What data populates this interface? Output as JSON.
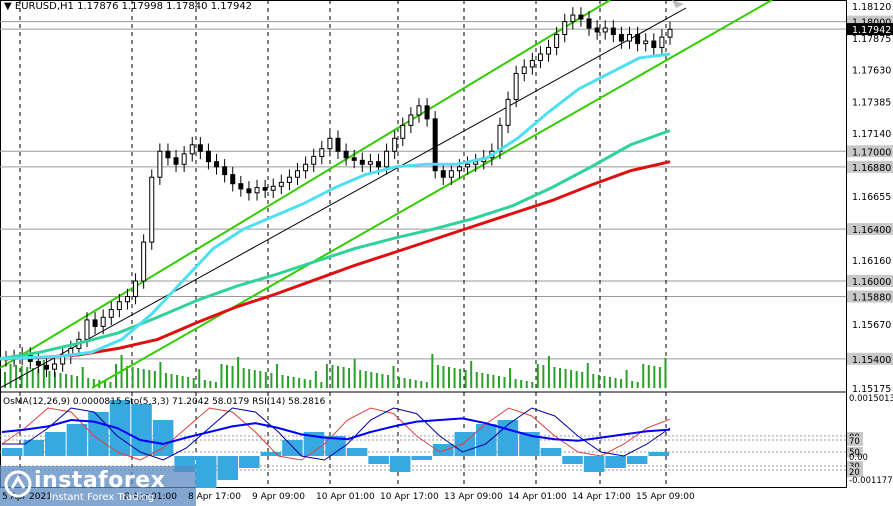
{
  "header": {
    "symbol": "EURUSD,H1",
    "ohlc": "1.17876 1.17998 1.17840 1.17942"
  },
  "price_labels": [
    {
      "text": "1.18120",
      "boxed": false
    },
    {
      "text": "1.18000",
      "boxed": true,
      "bg": "#c8c8c8",
      "color": "#000"
    },
    {
      "text": "1.17942",
      "boxed": true,
      "bg": "#000000",
      "color": "#fff"
    },
    {
      "text": "1.17875",
      "boxed": false
    },
    {
      "text": "1.17630",
      "boxed": false
    },
    {
      "text": "1.17385",
      "boxed": false
    },
    {
      "text": "1.17140",
      "boxed": false
    },
    {
      "text": "1.17000",
      "boxed": true,
      "bg": "#c8c8c8",
      "color": "#000"
    },
    {
      "text": "1.16880",
      "boxed": true,
      "bg": "#c8c8c8",
      "color": "#000"
    },
    {
      "text": "1.16655",
      "boxed": false
    },
    {
      "text": "1.16400",
      "boxed": true,
      "bg": "#c8c8c8",
      "color": "#000"
    },
    {
      "text": "1.16160",
      "boxed": false
    },
    {
      "text": "1.16000",
      "boxed": true,
      "bg": "#c8c8c8",
      "color": "#000"
    },
    {
      "text": "1.15880",
      "boxed": true,
      "bg": "#c8c8c8",
      "color": "#000"
    },
    {
      "text": "1.15670",
      "boxed": false
    },
    {
      "text": "1.15400",
      "boxed": true,
      "bg": "#c8c8c8",
      "color": "#000"
    },
    {
      "text": "1.15175",
      "boxed": false
    }
  ],
  "osc_header": {
    "osma": "OsMA(12,26,9) 0.0000815",
    "stoch": "Sto(5,3,3) 71.2042 58.0179",
    "rsi": "RSI(14) 58.2816"
  },
  "osc_labels": [
    {
      "text": "0.0015013",
      "boxed": false
    },
    {
      "text": "80",
      "boxed": true
    },
    {
      "text": "70",
      "boxed": true
    },
    {
      "text": "50",
      "boxed": true
    },
    {
      "text": "0.00",
      "boxed": false
    },
    {
      "text": "30",
      "boxed": true
    },
    {
      "text": "20",
      "boxed": true
    },
    {
      "text": "-0.0011779",
      "boxed": false
    }
  ],
  "time_labels": [
    "5 Apr 2021",
    "8 Apr 01:00",
    "8 Apr 17:00",
    "9 Apr 09:00",
    "10 Apr 01:00",
    "10 Apr 17:00",
    "13 Apr 09:00",
    "14 Apr 01:00",
    "14 Apr 17:00",
    "15 Apr 09:00"
  ],
  "logo": {
    "title": "instaforex",
    "subtitle": "Instant Forex Trading"
  },
  "colors": {
    "candle": "#000000",
    "ma_fast": "#4ee0f0",
    "ma_mid": "#2ed39a",
    "ma_slow": "#e01010",
    "channel": "#33cc00",
    "volume": "#2aa02a",
    "osma": "#37a8e0",
    "stoch_main": "#0000a0",
    "stoch_signal": "#e04040",
    "rsi": "#0000ff"
  },
  "chart_data": {
    "type": "line",
    "title": "EURUSD,H1",
    "ylim": [
      1.15175,
      1.1812
    ],
    "candles_close": [
      1.154,
      1.1541,
      1.1543,
      1.1538,
      1.1535,
      1.1532,
      1.1536,
      1.1542,
      1.1548,
      1.1555,
      1.157,
      1.1565,
      1.1572,
      1.1578,
      1.1584,
      1.1588,
      1.16,
      1.163,
      1.168,
      1.17,
      1.1695,
      1.169,
      1.1698,
      1.1705,
      1.17,
      1.1692,
      1.1688,
      1.1682,
      1.1675,
      1.1671,
      1.1668,
      1.1672,
      1.167,
      1.1673,
      1.1676,
      1.168,
      1.1685,
      1.169,
      1.1696,
      1.1702,
      1.171,
      1.17,
      1.1695,
      1.1693,
      1.169,
      1.1692,
      1.1688,
      1.17,
      1.171,
      1.172,
      1.1728,
      1.1735,
      1.1725,
      1.1685,
      1.168,
      1.1685,
      1.1688,
      1.169,
      1.1692,
      1.1695,
      1.17,
      1.172,
      1.174,
      1.176,
      1.1765,
      1.177,
      1.1775,
      1.178,
      1.179,
      1.18,
      1.1805,
      1.1802,
      1.1795,
      1.1792,
      1.1795,
      1.179,
      1.1785,
      1.179,
      1.1783,
      1.1785,
      1.178,
      1.1788,
      1.1794
    ],
    "ma_fast": [
      1.154,
      1.1541,
      1.1542,
      1.1545,
      1.1555,
      1.1575,
      1.16,
      1.1625,
      1.164,
      1.165,
      1.166,
      1.1672,
      1.1682,
      1.1688,
      1.169,
      1.169,
      1.1695,
      1.171,
      1.173,
      1.1748,
      1.176,
      1.1772,
      1.1775
    ],
    "ma_mid": [
      1.154,
      1.1545,
      1.1552,
      1.156,
      1.1572,
      1.1585,
      1.1596,
      1.1605,
      1.1615,
      1.1625,
      1.1633,
      1.164,
      1.1648,
      1.1658,
      1.1672,
      1.1688,
      1.1705,
      1.1716
    ],
    "ma_slow": [
      1.154,
      1.1541,
      1.1543,
      1.1548,
      1.1555,
      1.1568,
      1.158,
      1.159,
      1.1601,
      1.1612,
      1.1622,
      1.1632,
      1.1642,
      1.1652,
      1.1662,
      1.1674,
      1.1685,
      1.1692
    ],
    "osma": [
      0.0002,
      0.0004,
      0.0006,
      0.0008,
      0.0011,
      0.0014,
      0.0013,
      0.0009,
      -0.0004,
      -0.0008,
      -0.0006,
      -0.0003,
      0.0001,
      0.0004,
      0.0006,
      0.0005,
      0.0002,
      -0.0002,
      -0.0004,
      -0.0001,
      0.0003,
      0.0006,
      0.0008,
      0.0009,
      0.0006,
      0.0002,
      -0.0002,
      -0.0004,
      -0.0003,
      -0.0002,
      0.0001
    ],
    "rsi": [
      55,
      58,
      62,
      70,
      68,
      60,
      45,
      40,
      48,
      55,
      62,
      66,
      60,
      52,
      48,
      46,
      55,
      62,
      68,
      70,
      72,
      66,
      58,
      50,
      46,
      44,
      48,
      52,
      56,
      58
    ],
    "stoch": [
      40,
      60,
      85,
      80,
      50,
      30,
      20,
      35,
      60,
      85,
      80,
      55,
      25,
      20,
      40,
      70,
      85,
      78,
      50,
      30,
      40,
      65,
      85,
      75,
      50,
      30,
      25,
      40,
      60,
      71
    ]
  }
}
